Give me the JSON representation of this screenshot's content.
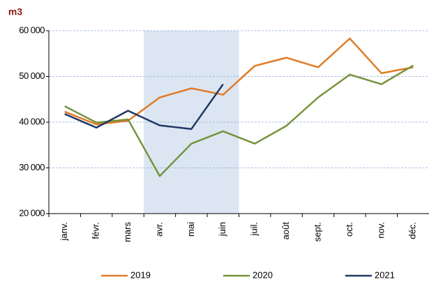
{
  "chart_data": {
    "type": "line",
    "y_unit": "m3",
    "categories": [
      "janv.",
      "févr.",
      "mars",
      "avr.",
      "mai",
      "juin",
      "juil.",
      "août",
      "sept.",
      "oct.",
      "nov.",
      "déc."
    ],
    "series": [
      {
        "name": "2019",
        "color": "#e07b26",
        "values": [
          42300,
          39500,
          40300,
          45400,
          47400,
          46000,
          52300,
          54100,
          52000,
          58300,
          50700,
          52000
        ]
      },
      {
        "name": "2020",
        "color": "#77933c",
        "values": [
          43500,
          39900,
          40600,
          28200,
          35300,
          38000,
          35300,
          39200,
          45400,
          50400,
          48300,
          52400
        ]
      },
      {
        "name": "2021",
        "color": "#1f3864",
        "values": [
          41800,
          38800,
          42500,
          39300,
          38500,
          48300,
          null,
          null,
          null,
          null,
          null,
          null
        ]
      }
    ],
    "ylim": [
      20000,
      60000
    ],
    "yticks": [
      {
        "value": 20000,
        "label": "20 000"
      },
      {
        "value": 30000,
        "label": "30 000"
      },
      {
        "value": 40000,
        "label": "40 000"
      },
      {
        "value": 50000,
        "label": "50 000"
      },
      {
        "value": 60000,
        "label": "60 000"
      }
    ],
    "grid": true,
    "shaded_range": [
      "avr.",
      "juin"
    ],
    "shade_color": "#dce6f2",
    "legend": "bottom"
  }
}
